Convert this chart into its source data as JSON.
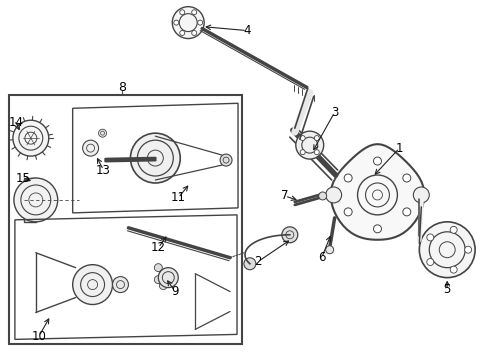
{
  "bg_color": "#ffffff",
  "line_color": "#444444",
  "fig_width": 4.89,
  "fig_height": 3.6,
  "dpi": 100
}
